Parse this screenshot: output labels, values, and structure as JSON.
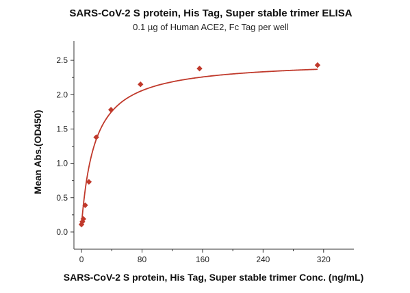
{
  "chart_data": {
    "type": "scatter",
    "title": "SARS-CoV-2 S protein, His Tag, Super stable trimer ELISA",
    "subtitle": "0.1 µg of Human ACE2, Fc Tag per well",
    "xlabel": "SARS-CoV-2 S protein, His Tag, Super stable trimer Conc. (ng/mL)",
    "ylabel": "Mean Abs.(OD450)",
    "xlim": [
      -10,
      360
    ],
    "ylim": [
      -0.25,
      2.78
    ],
    "xticks": [
      0,
      80,
      160,
      240,
      320
    ],
    "yticks": [
      0.0,
      0.5,
      1.0,
      1.5,
      2.0,
      2.5
    ],
    "x_tick_labels": [
      "0",
      "80",
      "160",
      "240",
      "320"
    ],
    "y_tick_labels": [
      "0.0",
      "0.5",
      "1.0",
      "1.5",
      "2.0",
      "2.5"
    ],
    "grid": false,
    "marker": "diamond",
    "color": "#c0392b",
    "series": [
      {
        "x": [
          0,
          1.2,
          2.5,
          4.9,
          9.8,
          19.5,
          39,
          78,
          156,
          312
        ],
        "y": [
          0.11,
          0.15,
          0.19,
          0.39,
          0.73,
          1.38,
          1.78,
          2.15,
          2.38,
          2.43
        ],
        "fit": {
          "model": "hyperbolic",
          "params": {
            "bottom": 0.1,
            "top": 2.5,
            "ec50": 18
          }
        }
      }
    ]
  }
}
